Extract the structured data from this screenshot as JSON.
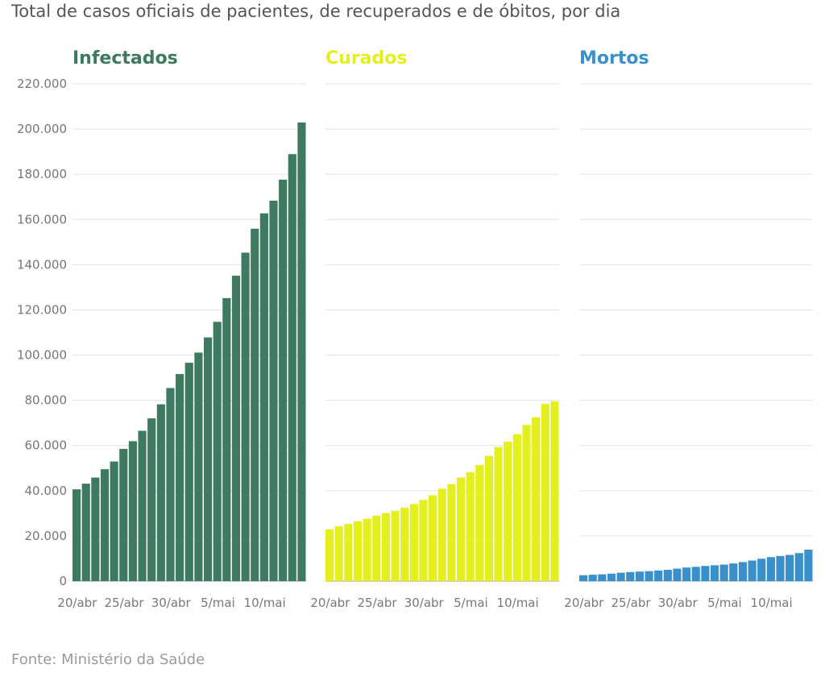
{
  "title": "Total de casos oficiais de pacientes, de recuperados e de óbitos, por dia",
  "source": "Fonte: Ministério da Saúde",
  "chart_data": {
    "type": "bar",
    "y_ticks": [
      "0",
      "20.000",
      "40.000",
      "60.000",
      "80.000",
      "100.000",
      "120.000",
      "140.000",
      "160.000",
      "180.000",
      "200.000",
      "220.000"
    ],
    "ylim": [
      0,
      220000
    ],
    "x_tick_labels": [
      {
        "label": "20/abr",
        "index": 0
      },
      {
        "label": "25/abr",
        "index": 5
      },
      {
        "label": "30/abr",
        "index": 10
      },
      {
        "label": "5/mai",
        "index": 15
      },
      {
        "label": "10/mai",
        "index": 20
      }
    ],
    "series": [
      {
        "name": "Infectados",
        "color": "#3d7a5f",
        "values": [
          40600,
          43100,
          45800,
          49500,
          52900,
          58500,
          61900,
          66500,
          72000,
          78200,
          85400,
          91600,
          96600,
          101100,
          107800,
          114700,
          125200,
          135100,
          145300,
          155900,
          162700,
          168300,
          177600,
          188900,
          202900
        ]
      },
      {
        "name": "Curados",
        "color": "#e3f01e",
        "values": [
          22900,
          24300,
          25300,
          26500,
          27600,
          29000,
          30100,
          31100,
          32500,
          34100,
          35900,
          38000,
          40900,
          42900,
          45800,
          48200,
          51400,
          55400,
          59300,
          61700,
          65000,
          69100,
          72500,
          78400,
          79500
        ]
      },
      {
        "name": "Mortos",
        "color": "#3a90cb",
        "values": [
          2600,
          2800,
          3000,
          3300,
          3700,
          4000,
          4200,
          4400,
          4700,
          5000,
          5500,
          6000,
          6300,
          6700,
          7000,
          7300,
          7800,
          8400,
          9100,
          9900,
          10600,
          11100,
          11600,
          12400,
          13900
        ]
      }
    ]
  }
}
